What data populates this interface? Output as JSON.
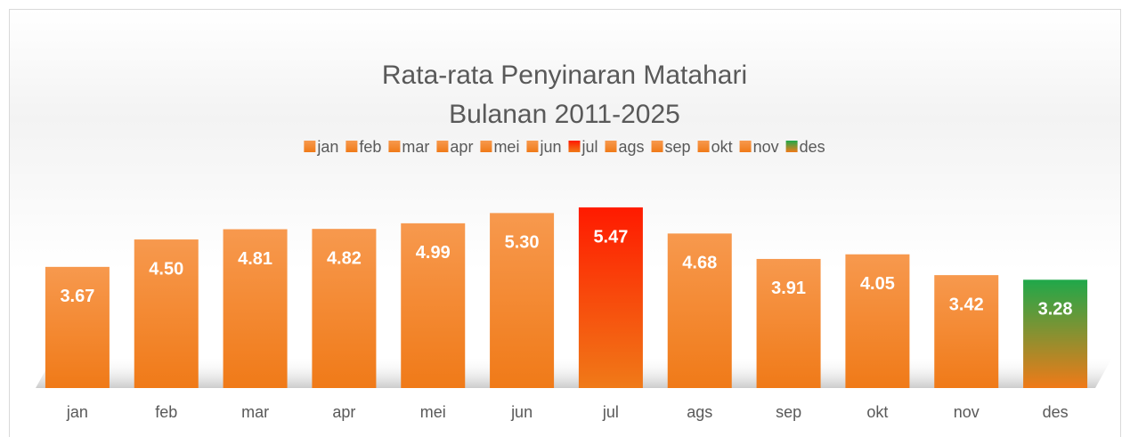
{
  "chart_data": {
    "type": "bar",
    "title": [
      "Rata-rata Penyinaran Matahari",
      "Bulanan 2011-2025"
    ],
    "categories": [
      "jan",
      "feb",
      "mar",
      "apr",
      "mei",
      "jun",
      "jul",
      "ags",
      "sep",
      "okt",
      "nov",
      "des"
    ],
    "values": [
      3.67,
      4.5,
      4.81,
      4.82,
      4.99,
      5.3,
      5.47,
      4.68,
      3.91,
      4.05,
      3.42,
      3.28
    ],
    "value_labels": [
      "3.67",
      "4.50",
      "4.81",
      "4.82",
      "4.99",
      "5.30",
      "5.47",
      "4.68",
      "3.91",
      "4.05",
      "3.42",
      "3.28"
    ],
    "colors": [
      "#f7994e",
      "#f7994e",
      "#f7994e",
      "#f7994e",
      "#f7994e",
      "#f7994e",
      "#ff1a00",
      "#f7994e",
      "#f7994e",
      "#f7994e",
      "#f7994e",
      "#1fa84a"
    ],
    "legend": true
  }
}
